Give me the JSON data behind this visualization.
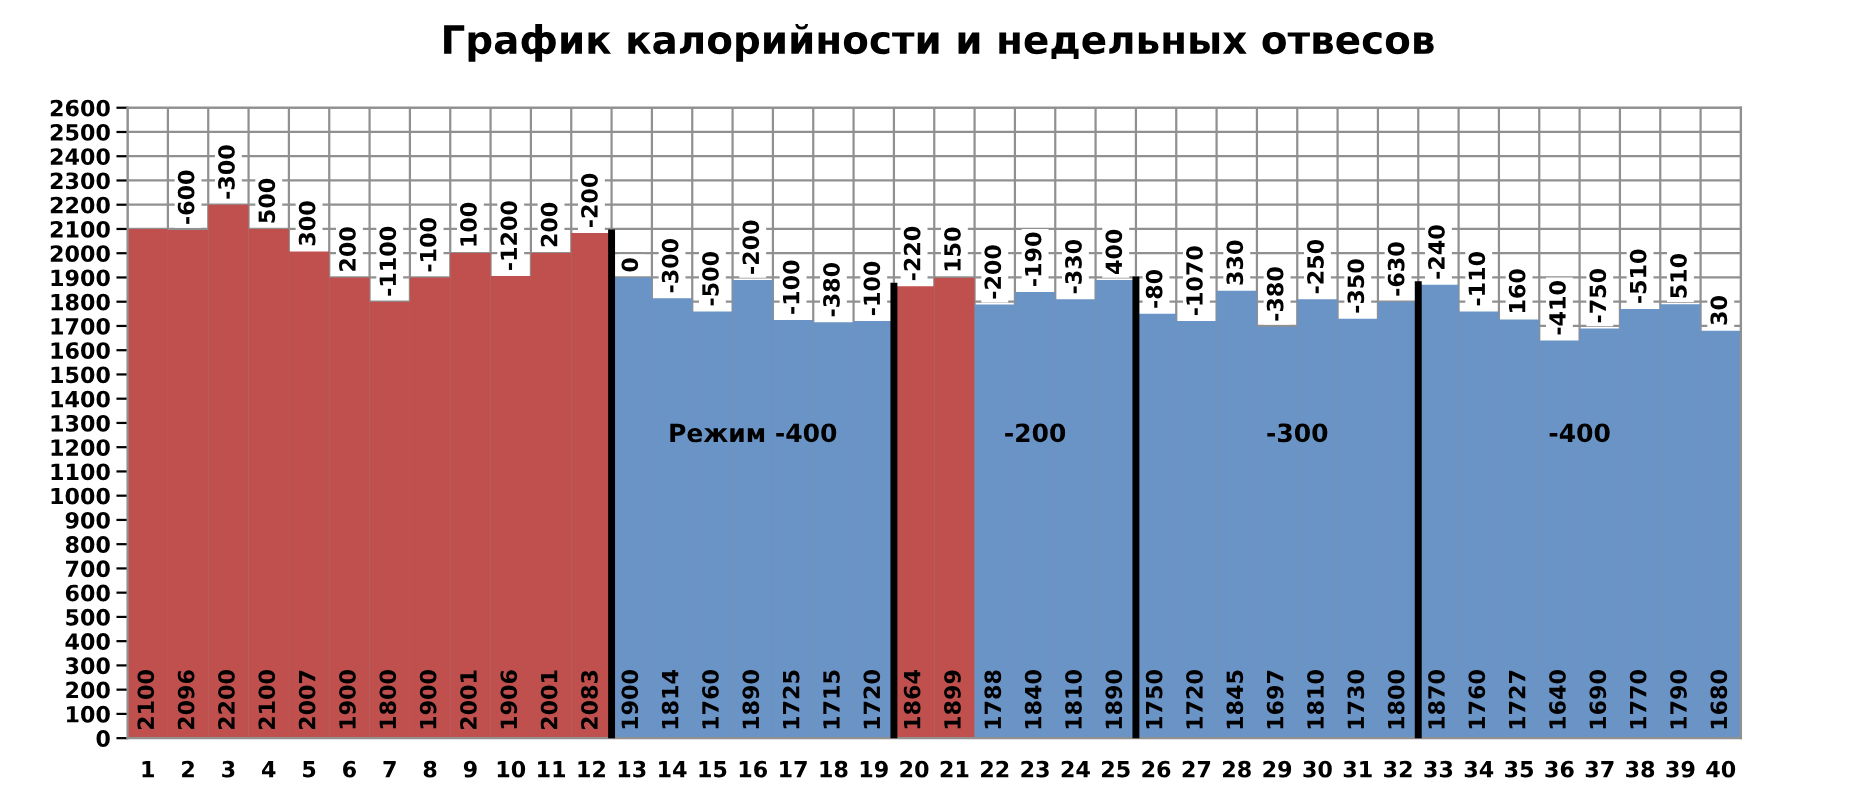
{
  "chart_data": {
    "type": "bar",
    "title": "График калорийности и недельных отвесов",
    "x": [
      1,
      2,
      3,
      4,
      5,
      6,
      7,
      8,
      9,
      10,
      11,
      12,
      13,
      14,
      15,
      16,
      17,
      18,
      19,
      20,
      21,
      22,
      23,
      24,
      25,
      26,
      27,
      28,
      29,
      30,
      31,
      32,
      33,
      34,
      35,
      36,
      37,
      38,
      39,
      40
    ],
    "values": [
      2100,
      2096,
      2200,
      2100,
      2007,
      1900,
      1800,
      1900,
      2001,
      1906,
      2001,
      2083,
      1900,
      1814,
      1760,
      1890,
      1725,
      1715,
      1720,
      1864,
      1899,
      1788,
      1840,
      1810,
      1890,
      1750,
      1720,
      1845,
      1697,
      1810,
      1730,
      1800,
      1870,
      1760,
      1727,
      1640,
      1690,
      1770,
      1790,
      1680
    ],
    "colors": [
      "#c0504d",
      "#c0504d",
      "#c0504d",
      "#c0504d",
      "#c0504d",
      "#c0504d",
      "#c0504d",
      "#c0504d",
      "#c0504d",
      "#c0504d",
      "#c0504d",
      "#c0504d",
      "#6a93c6",
      "#6a93c6",
      "#6a93c6",
      "#6a93c6",
      "#6a93c6",
      "#6a93c6",
      "#6a93c6",
      "#c0504d",
      "#c0504d",
      "#6a93c6",
      "#6a93c6",
      "#6a93c6",
      "#6a93c6",
      "#6a93c6",
      "#6a93c6",
      "#6a93c6",
      "#6a93c6",
      "#6a93c6",
      "#6a93c6",
      "#6a93c6",
      "#6a93c6",
      "#6a93c6",
      "#6a93c6",
      "#6a93c6",
      "#6a93c6",
      "#6a93c6",
      "#6a93c6",
      "#6a93c6"
    ],
    "data_labels": true,
    "xlim": [
      0.5,
      40.5
    ],
    "xticks": [
      1,
      2,
      3,
      4,
      5,
      6,
      7,
      8,
      9,
      10,
      11,
      12,
      13,
      14,
      15,
      16,
      17,
      18,
      19,
      20,
      21,
      22,
      23,
      24,
      25,
      26,
      27,
      28,
      29,
      30,
      31,
      32,
      33,
      34,
      35,
      36,
      37,
      38,
      39,
      40
    ],
    "ylim": [
      0,
      2600
    ],
    "yticks": [
      0,
      100,
      200,
      300,
      400,
      500,
      600,
      700,
      800,
      900,
      1000,
      1100,
      1200,
      1300,
      1400,
      1500,
      1600,
      1700,
      1800,
      1900,
      2000,
      2100,
      2200,
      2300,
      2400,
      2500,
      2600
    ],
    "grid": true,
    "ref_lines": [
      {
        "axis": "x",
        "value": 12.5,
        "color": "#000000"
      },
      {
        "axis": "x",
        "value": 19.5,
        "color": "#000000"
      },
      {
        "axis": "x",
        "value": 25.5,
        "color": "#000000"
      },
      {
        "axis": "x",
        "value": 32.5,
        "color": "#000000"
      }
    ],
    "annotations": [
      {
        "text": "-600",
        "x": 2,
        "y": 2096
      },
      {
        "text": "-300",
        "x": 3,
        "y": 2200
      },
      {
        "text": "500",
        "x": 4,
        "y": 2100
      },
      {
        "text": "300",
        "x": 5,
        "y": 2007
      },
      {
        "text": "200",
        "x": 6,
        "y": 1900
      },
      {
        "text": "-1100",
        "x": 7,
        "y": 1800
      },
      {
        "text": "-100",
        "x": 8,
        "y": 1900
      },
      {
        "text": "100",
        "x": 9,
        "y": 2001
      },
      {
        "text": "-1200",
        "x": 10,
        "y": 1906
      },
      {
        "text": "200",
        "x": 11,
        "y": 2001
      },
      {
        "text": "-200",
        "x": 12,
        "y": 2083
      },
      {
        "text": "0",
        "x": 13,
        "y": 1900
      },
      {
        "text": "-300",
        "x": 14,
        "y": 1814
      },
      {
        "text": "-500",
        "x": 15,
        "y": 1760
      },
      {
        "text": "-200",
        "x": 16,
        "y": 1890
      },
      {
        "text": "-100",
        "x": 17,
        "y": 1725
      },
      {
        "text": "-380",
        "x": 18,
        "y": 1715
      },
      {
        "text": "-100",
        "x": 19,
        "y": 1720
      },
      {
        "text": "-220",
        "x": 20,
        "y": 1864
      },
      {
        "text": "150",
        "x": 21,
        "y": 1899
      },
      {
        "text": "-200",
        "x": 22,
        "y": 1788
      },
      {
        "text": "-190",
        "x": 23,
        "y": 1840
      },
      {
        "text": "-330",
        "x": 24,
        "y": 1810
      },
      {
        "text": "400",
        "x": 25,
        "y": 1890
      },
      {
        "text": "-80",
        "x": 26,
        "y": 1750
      },
      {
        "text": "-1070",
        "x": 27,
        "y": 1720
      },
      {
        "text": "330",
        "x": 28,
        "y": 1845
      },
      {
        "text": "-380",
        "x": 29,
        "y": 1697
      },
      {
        "text": "-250",
        "x": 30,
        "y": 1810
      },
      {
        "text": "-350",
        "x": 31,
        "y": 1730
      },
      {
        "text": "-630",
        "x": 32,
        "y": 1800
      },
      {
        "text": "-240",
        "x": 33,
        "y": 1870
      },
      {
        "text": "-110",
        "x": 34,
        "y": 1760
      },
      {
        "text": "160",
        "x": 35,
        "y": 1727
      },
      {
        "text": "-410",
        "x": 36,
        "y": 1640
      },
      {
        "text": "-750",
        "x": 37,
        "y": 1690
      },
      {
        "text": "-510",
        "x": 38,
        "y": 1770
      },
      {
        "text": "510",
        "x": 39,
        "y": 1790
      },
      {
        "text": "30",
        "x": 40,
        "y": 1680
      },
      "Режим -400",
      "-200",
      "-300",
      "-400"
    ]
  }
}
